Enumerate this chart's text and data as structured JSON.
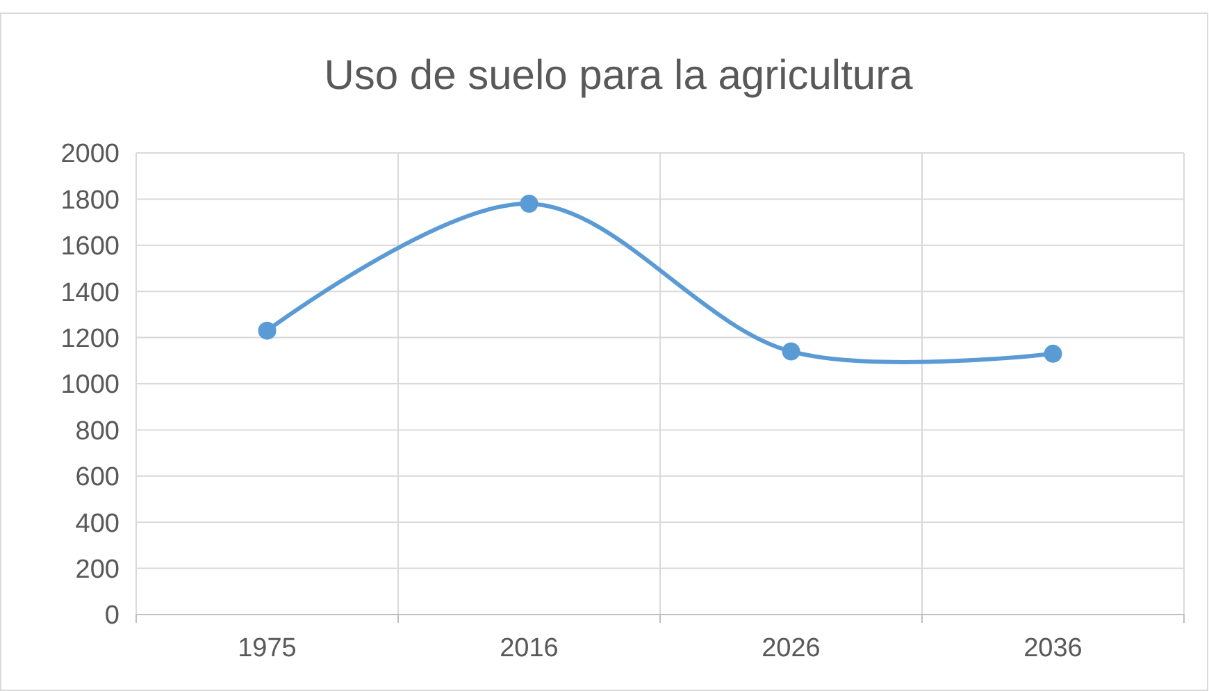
{
  "chart_data": {
    "type": "line",
    "title": "Uso de suelo para la agricultura",
    "categories": [
      "1975",
      "2016",
      "2026",
      "2036"
    ],
    "series": [
      {
        "color": "#5b9bd5",
        "values": [
          1230,
          1780,
          1140,
          1130
        ]
      }
    ],
    "ylim": [
      0,
      2000
    ],
    "yticks": [
      0,
      200,
      400,
      600,
      800,
      1000,
      1200,
      1400,
      1600,
      1800,
      2000
    ],
    "grid": true,
    "marker": "circle",
    "line_style": "solid"
  }
}
